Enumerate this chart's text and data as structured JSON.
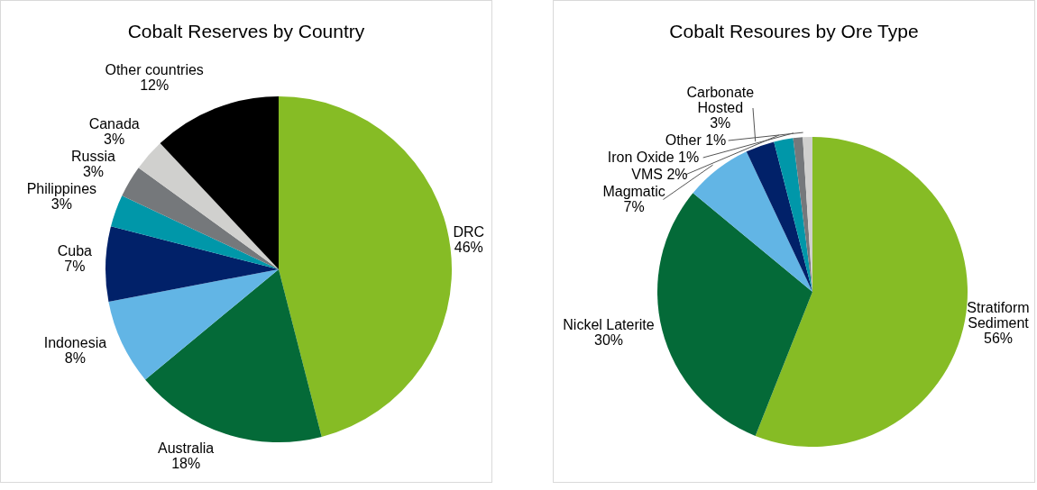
{
  "chart_data": [
    {
      "type": "pie",
      "title": "Cobalt Reserves by Country",
      "categories": [
        "DRC",
        "Australia",
        "Indonesia",
        "Cuba",
        "Philippines",
        "Russia",
        "Canada",
        "Other countries"
      ],
      "values": [
        46,
        18,
        8,
        7,
        3,
        3,
        3,
        12
      ],
      "value_labels": [
        "46%",
        "18%",
        "8%",
        "7%",
        "3%",
        "3%",
        "3%",
        "12%"
      ],
      "colors": [
        "#86bc25",
        "#046a38",
        "#62b5e5",
        "#012169",
        "#0097a9",
        "#75787b",
        "#d0d0ce",
        "#000000"
      ],
      "legend": false
    },
    {
      "type": "pie",
      "title": "Cobalt Resoures by Ore Type",
      "categories": [
        "Stratiform Sediment",
        "Nickel Laterite",
        "Magmatic",
        "Carbonate Hosted",
        "VMS",
        "Iron Oxide",
        "Other"
      ],
      "values": [
        56,
        30,
        7,
        3,
        2,
        1,
        1
      ],
      "value_labels": [
        "56%",
        "30%",
        "7%",
        "3%",
        "2%",
        "1%",
        "1%"
      ],
      "colors": [
        "#86bc25",
        "#046a38",
        "#62b5e5",
        "#012169",
        "#0097a9",
        "#75787b",
        "#d0d0ce"
      ],
      "legend": false
    }
  ]
}
